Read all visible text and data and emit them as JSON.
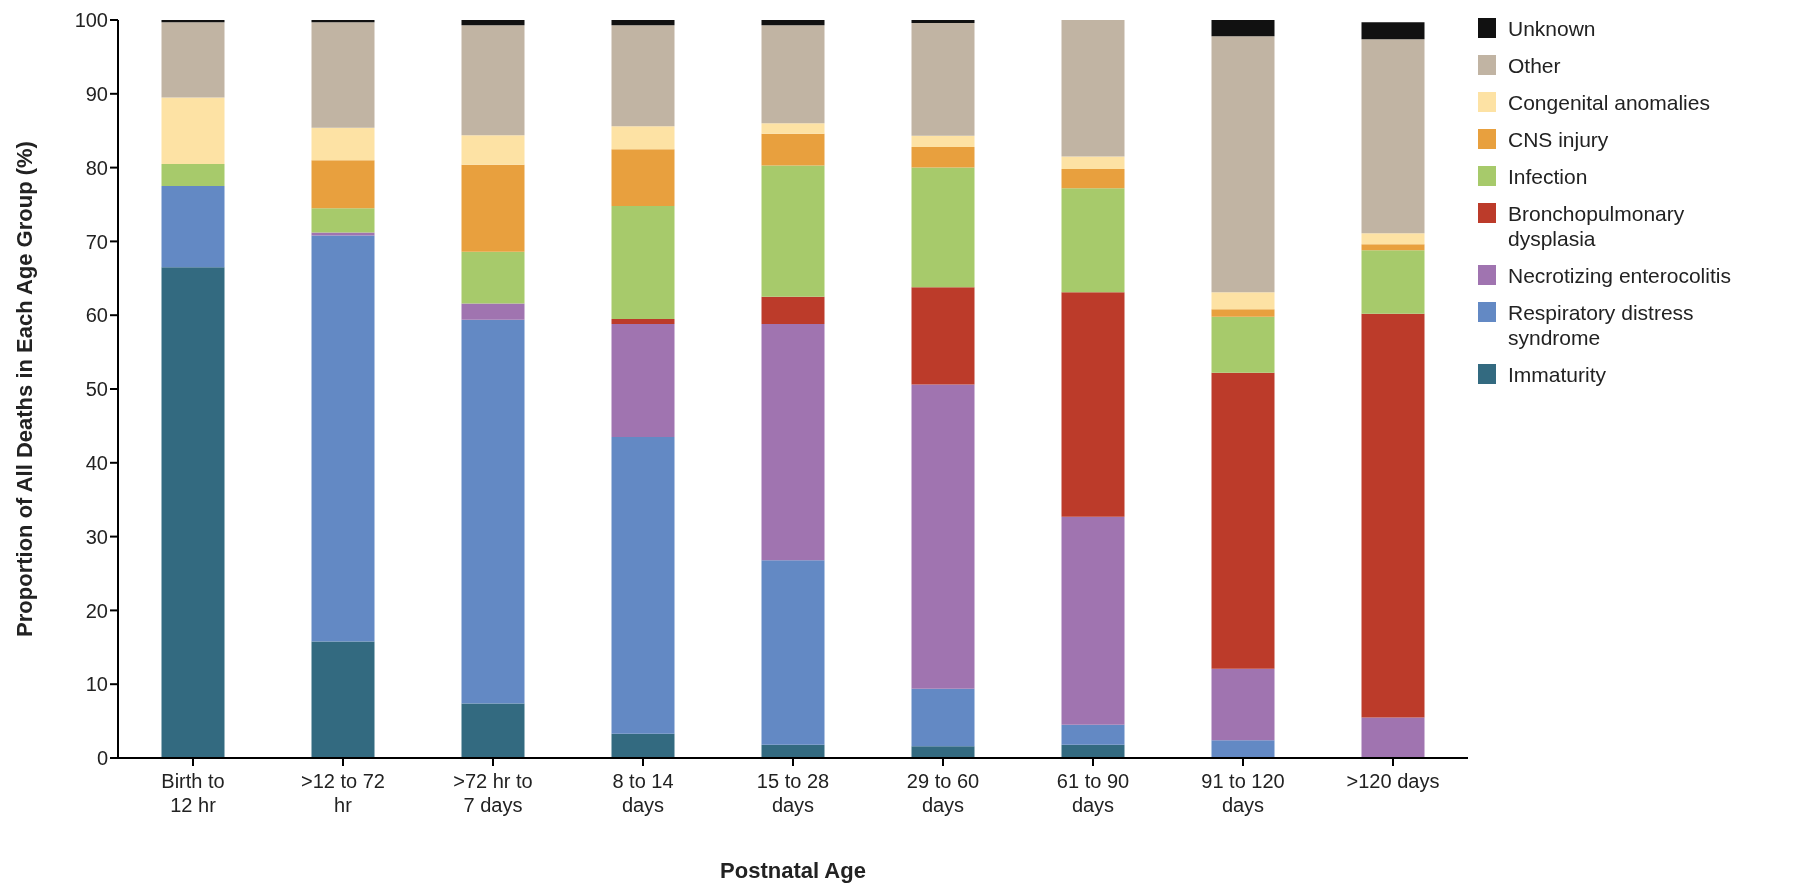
{
  "chart_data": {
    "type": "bar",
    "stacked": true,
    "xlabel": "Postnatal Age",
    "ylabel": "Proportion of All Deaths in Each Age Group (%)",
    "categories": [
      "Birth to 12 hr",
      ">12 to 72 hr",
      ">72 hr to 7 days",
      "8 to 14 days",
      "15 to 28 days",
      "29 to 60 days",
      "61 to 90 days",
      "91 to 120 days",
      ">120 days"
    ],
    "series": [
      {
        "name": "Immaturity",
        "color": "#336a80",
        "values": [
          66.5,
          15.8,
          7.4,
          3.3,
          1.8,
          1.6,
          1.8,
          0,
          0
        ]
      },
      {
        "name": "Respiratory distress syndrome",
        "color": "#6389c4",
        "values": [
          11,
          55,
          52,
          40.2,
          25,
          7.8,
          2.7,
          2.4,
          null
        ]
      },
      {
        "name": "Necrotizing enterocolitis",
        "color": "#a074b0",
        "values": [
          0,
          0.4,
          2.2,
          15.3,
          32,
          41.2,
          28.2,
          9.7,
          5.5
        ]
      },
      {
        "name": "Bronchopulmonary dysplasia",
        "color": "#bc3b2a",
        "values": [
          0,
          0,
          0,
          0.7,
          3.7,
          13.2,
          30.4,
          40.1,
          54.7
        ]
      },
      {
        "name": "Infection",
        "color": "#a7ca6b",
        "values": [
          3,
          3.3,
          7,
          15.3,
          17.8,
          16.2,
          14.1,
          7.6,
          8.6
        ]
      },
      {
        "name": "CNS injury",
        "color": "#e8a03e",
        "values": [
          0,
          6.5,
          11.8,
          7.7,
          4.3,
          2.8,
          2.6,
          1,
          0.8
        ]
      },
      {
        "name": "Congenital anomalies",
        "color": "#fde2a4",
        "values": [
          9,
          4.4,
          4,
          3.1,
          1.4,
          1.5,
          1.7,
          2.3,
          1.5
        ]
      },
      {
        "name": "Other",
        "color": "#c1b4a3",
        "values": [
          10.2,
          14.3,
          14.9,
          13.7,
          13.3,
          15.3,
          18.5,
          34.7,
          26.3
        ]
      },
      {
        "name": "Unknown",
        "color": "#111111",
        "values": [
          0.3,
          0.3,
          0.7,
          0.7,
          0.7,
          0.4,
          0,
          2.2,
          2.3
        ]
      }
    ],
    "ylim": [
      0,
      100
    ],
    "yticks": [
      0,
      10,
      20,
      30,
      40,
      50,
      60,
      70,
      80,
      90,
      100
    ],
    "grid": false,
    "legend": "right"
  }
}
